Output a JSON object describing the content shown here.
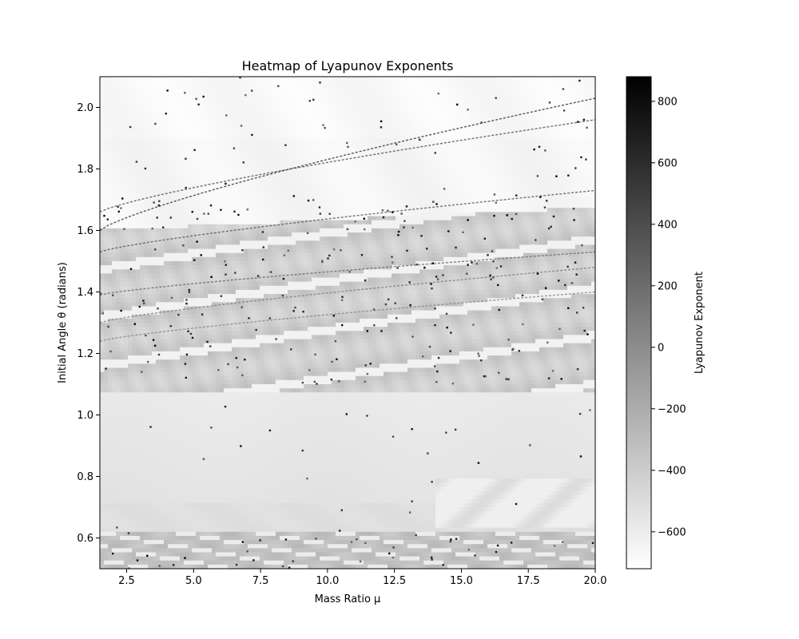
{
  "chart_data": {
    "type": "heatmap",
    "title": "Heatmap of Lyapunov Exponents",
    "xlabel": "Mass Ratio μ",
    "ylabel": "Initial Angle θ (radians)",
    "xlim": [
      1.5,
      20.0
    ],
    "ylim": [
      0.5,
      2.1
    ],
    "xticks": [
      2.5,
      5.0,
      7.5,
      10.0,
      12.5,
      15.0,
      17.5,
      20.0
    ],
    "xtick_labels": [
      "2.5",
      "5.0",
      "7.5",
      "10.0",
      "12.5",
      "15.0",
      "17.5",
      "20.0"
    ],
    "yticks": [
      0.6,
      0.8,
      1.0,
      1.2,
      1.4,
      1.6,
      1.8,
      2.0
    ],
    "ytick_labels": [
      "0.6",
      "0.8",
      "1.0",
      "1.2",
      "1.4",
      "1.6",
      "1.8",
      "2.0"
    ],
    "colormap": "Greys",
    "colorbar": {
      "label": "Lyapunov Exponent",
      "vmin": -720,
      "vmax": 880,
      "ticks": [
        800,
        600,
        400,
        200,
        0,
        -200,
        -400,
        -600
      ],
      "tick_labels": [
        "800",
        "600",
        "400",
        "200",
        "0",
        "−200",
        "−400",
        "−600"
      ]
    },
    "grid": false,
    "dominant_range": [
      -650,
      -300
    ],
    "regions": [
      {
        "theta_range": [
          1.08,
          1.62
        ],
        "typical_value": -380,
        "description_of_values": "textured band"
      },
      {
        "theta_range": [
          0.62,
          1.06
        ],
        "typical_value": -560
      },
      {
        "theta_range": [
          0.5,
          0.62
        ],
        "typical_value": -300
      },
      {
        "theta_range": [
          1.62,
          2.1
        ],
        "typical_value": -660
      }
    ],
    "outliers_max": 880
  },
  "colors": {
    "background": "#ffffff",
    "axis": "#000000",
    "colormap_low": "#ffffff",
    "colormap_high": "#000000"
  }
}
